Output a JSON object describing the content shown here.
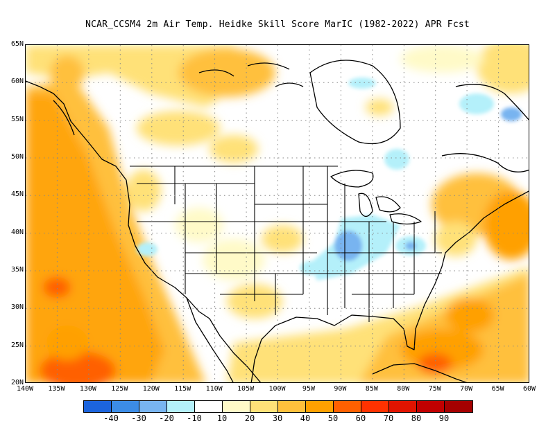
{
  "title": "NCAR_CCSM4  2m Air Temp. Heidke Skill Score MarIC (1982-2022) APR Fcst",
  "lat_ticks": [
    "65N",
    "60N",
    "55N",
    "50N",
    "45N",
    "40N",
    "35N",
    "30N",
    "25N",
    "20N"
  ],
  "lon_ticks": [
    "140W",
    "135W",
    "130W",
    "125W",
    "120W",
    "115W",
    "110W",
    "105W",
    "100W",
    "95W",
    "90W",
    "85W",
    "80W",
    "75W",
    "70W",
    "65W",
    "60W"
  ],
  "colorbar": {
    "colors": [
      "#1c64dc",
      "#3c8ce6",
      "#78b4f0",
      "#b4f0fa",
      "#ffffff",
      "#fffac8",
      "#ffe178",
      "#ffc03c",
      "#ffa000",
      "#ff6000",
      "#ff3200",
      "#e11400",
      "#c00000",
      "#a50000"
    ],
    "labels": [
      "-40",
      "-30",
      "-20",
      "-10",
      "10",
      "20",
      "30",
      "40",
      "50",
      "60",
      "70",
      "80",
      "90"
    ]
  }
}
